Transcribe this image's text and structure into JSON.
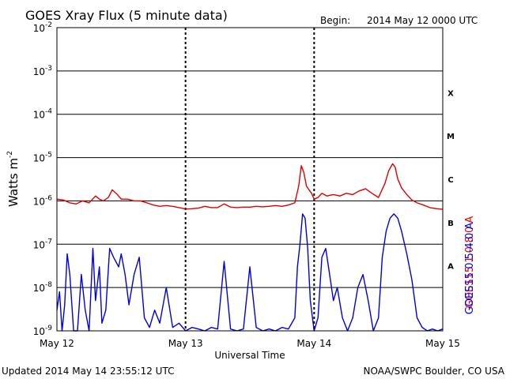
{
  "title": "GOES Xray Flux (5 minute data)",
  "begin_label": "Begin:",
  "begin_value": "2014 May 12 0000 UTC",
  "ylabel": "Watts m",
  "ylabel_exp": "-2",
  "xlabel": "Universal Time",
  "footer_left": "Updated 2014 May 14 23:55:12 UTC",
  "footer_right": "NOAA/SWPC Boulder, CO USA",
  "colors": {
    "long": "#e00000",
    "short": "#0000e0",
    "grid": "#000000"
  },
  "chart_data": {
    "type": "line",
    "title": "GOES Xray Flux (5 minute data)",
    "xlabel": "Universal Time",
    "ylabel": "Watts m-2",
    "yscale": "log",
    "ylim": [
      1e-09,
      0.01
    ],
    "xlim_days": [
      0,
      3
    ],
    "x_unit": "days since May 12 00:00 UTC",
    "x_ticks": [
      {
        "x": 0,
        "label": "May 12"
      },
      {
        "x": 1,
        "label": "May 13"
      },
      {
        "x": 2,
        "label": "May 14"
      },
      {
        "x": 3,
        "label": "May 15"
      }
    ],
    "y_ticks": [
      {
        "exp": -9,
        "base": "10",
        "sup": "-9"
      },
      {
        "exp": -8,
        "base": "10",
        "sup": "-8"
      },
      {
        "exp": -7,
        "base": "10",
        "sup": "-7"
      },
      {
        "exp": -6,
        "base": "10",
        "sup": "-6"
      },
      {
        "exp": -5,
        "base": "10",
        "sup": "-5"
      },
      {
        "exp": -4,
        "base": "10",
        "sup": "-4"
      },
      {
        "exp": -3,
        "base": "10",
        "sup": "-3"
      },
      {
        "exp": -2,
        "base": "10",
        "sup": "-2"
      }
    ],
    "flare_classes": [
      {
        "label": "A",
        "exp": -7.5
      },
      {
        "label": "B",
        "exp": -6.5
      },
      {
        "label": "C",
        "exp": -5.5
      },
      {
        "label": "M",
        "exp": -4.5
      },
      {
        "label": "X",
        "exp": -3.5
      }
    ],
    "series": [
      {
        "name": "GOES15 1.0-8.0 A",
        "color": "#e00000",
        "x": [
          0.0,
          0.05,
          0.1,
          0.15,
          0.2,
          0.25,
          0.3,
          0.33,
          0.36,
          0.4,
          0.43,
          0.47,
          0.5,
          0.55,
          0.6,
          0.65,
          0.7,
          0.75,
          0.8,
          0.85,
          0.9,
          0.95,
          1.0,
          1.05,
          1.1,
          1.15,
          1.2,
          1.25,
          1.3,
          1.35,
          1.4,
          1.45,
          1.5,
          1.55,
          1.6,
          1.65,
          1.7,
          1.75,
          1.8,
          1.85,
          1.88,
          1.9,
          1.92,
          1.94,
          1.96,
          1.98,
          2.0,
          2.03,
          2.06,
          2.1,
          2.15,
          2.2,
          2.25,
          2.3,
          2.35,
          2.4,
          2.45,
          2.5,
          2.55,
          2.58,
          2.61,
          2.63,
          2.65,
          2.68,
          2.72,
          2.76,
          2.8,
          2.85,
          2.9,
          2.95,
          3.0
        ],
        "y": [
          1.1e-06,
          1.05e-06,
          9e-07,
          8.5e-07,
          1e-06,
          9e-07,
          1.3e-06,
          1.1e-06,
          1e-06,
          1.2e-06,
          1.8e-06,
          1.4e-06,
          1.1e-06,
          1.1e-06,
          1e-06,
          1e-06,
          9e-07,
          8e-07,
          7.5e-07,
          7.8e-07,
          7.5e-07,
          7e-07,
          6.5e-07,
          6.6e-07,
          6.8e-07,
          7.5e-07,
          7e-07,
          7e-07,
          8.5e-07,
          7.2e-07,
          7e-07,
          7.2e-07,
          7.2e-07,
          7.5e-07,
          7.3e-07,
          7.5e-07,
          7.8e-07,
          7.5e-07,
          8e-07,
          9e-07,
          2.2e-06,
          6.5e-06,
          4.5e-06,
          2.2e-06,
          1.8e-06,
          1.5e-06,
          1.1e-06,
          1.2e-06,
          1.5e-06,
          1.3e-06,
          1.4e-06,
          1.3e-06,
          1.5e-06,
          1.4e-06,
          1.7e-06,
          1.9e-06,
          1.5e-06,
          1.2e-06,
          2.5e-06,
          5e-06,
          7.2e-06,
          6e-06,
          3.2e-06,
          2e-06,
          1.4e-06,
          1.05e-06,
          9e-07,
          8e-07,
          7e-07,
          6.6e-07,
          6.4e-07
        ]
      },
      {
        "name": "GOES15 0.5-4.0 A",
        "color": "#0000e0",
        "x": [
          0.0,
          0.02,
          0.04,
          0.06,
          0.08,
          0.1,
          0.13,
          0.16,
          0.19,
          0.22,
          0.25,
          0.28,
          0.3,
          0.33,
          0.35,
          0.38,
          0.41,
          0.44,
          0.48,
          0.5,
          0.53,
          0.56,
          0.6,
          0.64,
          0.68,
          0.72,
          0.76,
          0.8,
          0.85,
          0.9,
          0.95,
          1.0,
          1.05,
          1.1,
          1.15,
          1.2,
          1.25,
          1.3,
          1.35,
          1.4,
          1.45,
          1.5,
          1.55,
          1.6,
          1.65,
          1.7,
          1.75,
          1.8,
          1.85,
          1.87,
          1.89,
          1.91,
          1.93,
          1.95,
          1.97,
          2.0,
          2.03,
          2.06,
          2.09,
          2.12,
          2.15,
          2.18,
          2.22,
          2.26,
          2.3,
          2.34,
          2.38,
          2.42,
          2.46,
          2.5,
          2.53,
          2.56,
          2.59,
          2.62,
          2.65,
          2.68,
          2.72,
          2.76,
          2.8,
          2.84,
          2.88,
          2.92,
          2.96,
          3.0
        ],
        "y": [
          3e-09,
          8e-09,
          1e-09,
          4e-09,
          6e-08,
          2e-08,
          1e-09,
          1e-09,
          2e-08,
          3e-09,
          1e-09,
          8e-08,
          5e-09,
          3e-08,
          1.5e-09,
          3e-09,
          8e-08,
          5e-08,
          3e-08,
          6e-08,
          2e-08,
          4e-09,
          2e-08,
          5e-08,
          2e-09,
          1.2e-09,
          3e-09,
          1.5e-09,
          1e-08,
          1.2e-09,
          1.5e-09,
          1e-09,
          1.2e-09,
          1.1e-09,
          1e-09,
          1.2e-09,
          1.1e-09,
          4e-08,
          1.1e-09,
          1e-09,
          1.1e-09,
          3e-08,
          1.2e-09,
          1e-09,
          1.1e-09,
          1e-09,
          1.2e-09,
          1.1e-09,
          2e-09,
          3e-08,
          1e-07,
          5e-07,
          4e-07,
          8e-08,
          5e-09,
          1e-09,
          2e-09,
          5e-08,
          8e-08,
          2e-08,
          5e-09,
          1e-08,
          2e-09,
          1e-09,
          2e-09,
          1e-08,
          2e-08,
          5e-09,
          1e-09,
          2e-09,
          5e-08,
          2e-07,
          4e-07,
          5e-07,
          4e-07,
          2e-07,
          6e-08,
          1.5e-08,
          2e-09,
          1.2e-09,
          1e-09,
          1.1e-09,
          1e-09,
          1.1e-09
        ]
      }
    ]
  }
}
